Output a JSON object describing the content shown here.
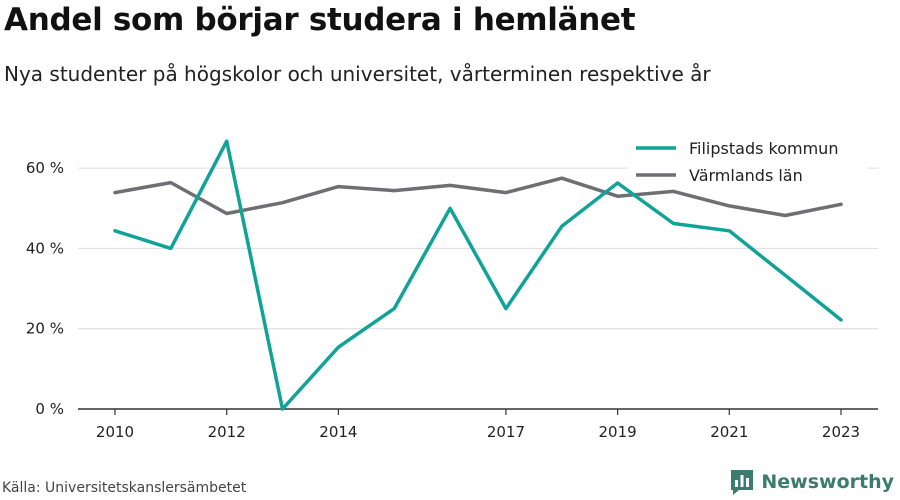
{
  "header": {
    "title": "Andel som börjar studera i hemlänet",
    "subtitle": "Nya studenter på högskolor och universitet, vårterminen respektive år"
  },
  "footer": {
    "source": "Källa: Universitetskanslersämbetet",
    "brand": "Newsworthy",
    "brand_icon": "bar-chart-logo-icon"
  },
  "chart_data": {
    "type": "line",
    "x": [
      2010,
      2011,
      2012,
      2013,
      2014,
      2015,
      2016,
      2017,
      2018,
      2019,
      2020,
      2021,
      2022,
      2023
    ],
    "xticks": [
      "2010",
      "2012",
      "2014",
      "2017",
      "2019",
      "2021",
      "2023"
    ],
    "yticks": [
      "0 %",
      "20 %",
      "40 %",
      "60 %"
    ],
    "ylim": [
      0,
      70
    ],
    "grid": "horizontal",
    "legend_position": "top-right",
    "series": [
      {
        "name": "Filipstads kommun",
        "color": "#11a397",
        "values": [
          44.4,
          40.0,
          66.7,
          0.0,
          15.4,
          25.0,
          50.0,
          25.0,
          45.5,
          56.3,
          46.2,
          44.4,
          33.3,
          22.2
        ]
      },
      {
        "name": "Värmlands län",
        "color": "#6e6e73",
        "values": [
          53.9,
          56.4,
          48.7,
          51.4,
          55.4,
          54.4,
          55.7,
          53.9,
          57.5,
          53.0,
          54.2,
          50.6,
          48.2,
          51.0
        ]
      }
    ]
  }
}
